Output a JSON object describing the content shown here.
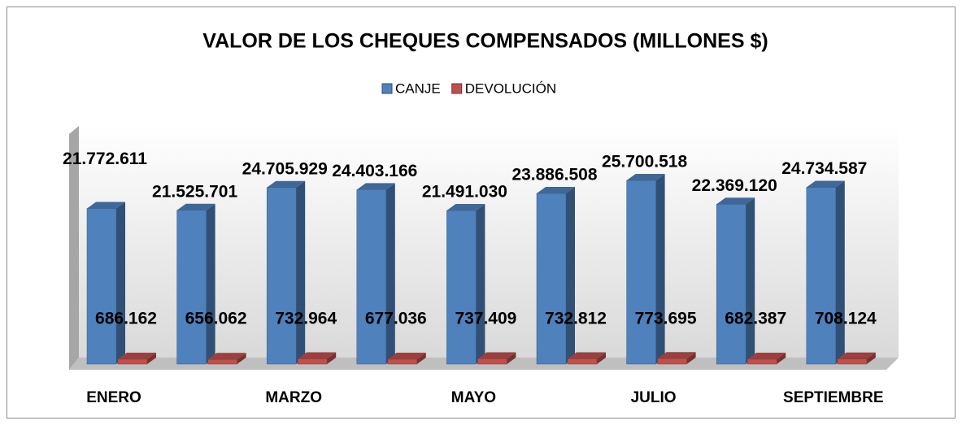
{
  "chart_data": {
    "type": "bar3d",
    "title": "VALOR DE LOS CHEQUES COMPENSADOS (MILLONES $)",
    "categories": [
      "ENERO",
      null,
      "MARZO",
      null,
      "MAYO",
      null,
      "JULIO",
      null,
      "SEPTIEMBRE"
    ],
    "legend": "top",
    "series": [
      {
        "name": "CANJE",
        "color": "#4f81bd",
        "values": [
          21772611,
          21525701,
          24705929,
          24403166,
          21491030,
          23886508,
          25700518,
          22369120,
          24734587
        ],
        "value_labels": [
          "21.772.611",
          "21.525.701",
          "24.705.929",
          "24.403.166",
          "21.491.030",
          "23.886.508",
          "25.700.518",
          "22.369.120",
          "24.734.587"
        ]
      },
      {
        "name": "DEVOLUCIÓN",
        "color": "#c0504d",
        "values": [
          686162,
          656062,
          732964,
          677036,
          737409,
          732812,
          773695,
          682387,
          708124
        ],
        "value_labels": [
          "686.162",
          "656.062",
          "732.964",
          "677.036",
          "737.409",
          "732.812",
          "773.695",
          "682.387",
          "708.124"
        ]
      }
    ]
  }
}
